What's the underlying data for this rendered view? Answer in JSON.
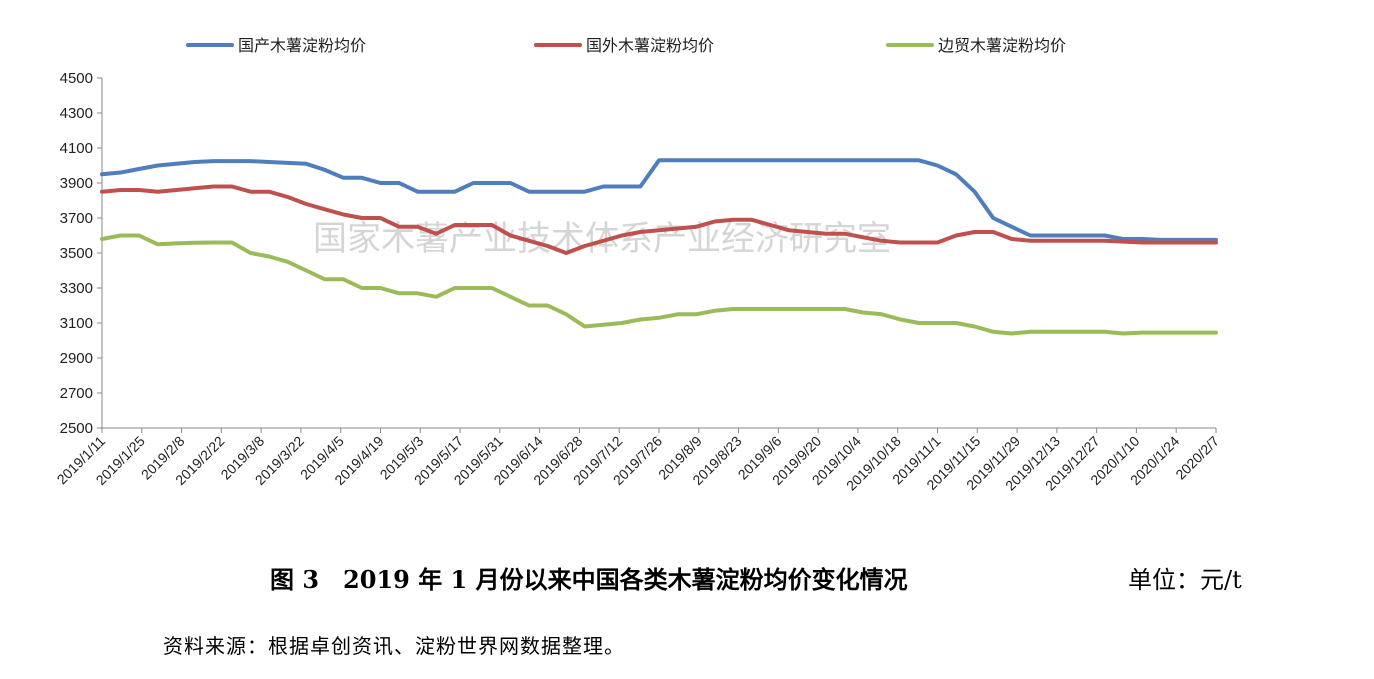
{
  "figure": {
    "caption": "图 3　2019 年 1 月份以来中国各类木薯淀粉均价变化情况",
    "unit": "单位：元/t",
    "source": "资料来源：根据卓创资讯、淀粉世界网数据整理。",
    "watermark": "国家木薯产业技术体系产业经济研究室"
  },
  "chart_data": {
    "type": "line",
    "title": "",
    "xlabel": "",
    "ylabel": "",
    "ylim": [
      2500,
      4500
    ],
    "yticks": [
      2500,
      2700,
      2900,
      3100,
      3300,
      3500,
      3700,
      3900,
      4100,
      4300,
      4500
    ],
    "x_tick_labels": [
      "2019/1/11",
      "2019/1/25",
      "2019/2/8",
      "2019/2/22",
      "2019/3/8",
      "2019/3/22",
      "2019/4/5",
      "2019/4/19",
      "2019/5/3",
      "2019/5/17",
      "2019/5/31",
      "2019/6/14",
      "2019/6/28",
      "2019/7/12",
      "2019/7/26",
      "2019/8/9",
      "2019/8/23",
      "2019/9/6",
      "2019/9/20",
      "2019/10/4",
      "2019/10/18",
      "2019/11/1",
      "2019/11/15",
      "2019/11/29",
      "2019/12/13",
      "2019/12/27",
      "2020/1/10",
      "2020/1/24",
      "2020/2/7"
    ],
    "legend_position": "top",
    "grid": false,
    "series": [
      {
        "name": "国产木薯淀粉均价",
        "color": "#4f7dbd",
        "values": [
          3950,
          3960,
          3980,
          4000,
          4010,
          4020,
          4025,
          4025,
          4025,
          4020,
          4015,
          4010,
          3975,
          3930,
          3930,
          3900,
          3900,
          3850,
          3850,
          3850,
          3900,
          3900,
          3900,
          3850,
          3850,
          3850,
          3850,
          3880,
          3880,
          3880,
          4030,
          4030,
          4030,
          4030,
          4030,
          4030,
          4030,
          4030,
          4030,
          4030,
          4030,
          4030,
          4030,
          4030,
          4030,
          4000,
          3950,
          3850,
          3700,
          3650,
          3600,
          3600,
          3600,
          3600,
          3600,
          3580,
          3580,
          3575,
          3575,
          3575,
          3575
        ]
      },
      {
        "name": "国外木薯淀粉均价",
        "color": "#c0504d",
        "values": [
          3850,
          3860,
          3860,
          3850,
          3860,
          3870,
          3880,
          3880,
          3850,
          3850,
          3820,
          3780,
          3750,
          3720,
          3700,
          3700,
          3650,
          3650,
          3610,
          3660,
          3660,
          3660,
          3600,
          3570,
          3540,
          3500,
          3540,
          3570,
          3600,
          3620,
          3630,
          3640,
          3650,
          3680,
          3690,
          3690,
          3660,
          3630,
          3620,
          3610,
          3610,
          3590,
          3570,
          3560,
          3560,
          3560,
          3600,
          3620,
          3620,
          3580,
          3570,
          3570,
          3570,
          3570,
          3570,
          3565,
          3560,
          3560,
          3560,
          3560,
          3560
        ]
      },
      {
        "name": "边贸木薯淀粉均价",
        "color": "#9bbb59",
        "values": [
          3580,
          3600,
          3600,
          3550,
          3555,
          3558,
          3560,
          3560,
          3500,
          3480,
          3450,
          3400,
          3350,
          3350,
          3300,
          3300,
          3270,
          3270,
          3250,
          3300,
          3300,
          3300,
          3250,
          3200,
          3200,
          3150,
          3080,
          3090,
          3100,
          3120,
          3130,
          3150,
          3150,
          3170,
          3180,
          3180,
          3180,
          3180,
          3180,
          3180,
          3180,
          3160,
          3150,
          3120,
          3100,
          3100,
          3100,
          3080,
          3050,
          3040,
          3050,
          3050,
          3050,
          3050,
          3050,
          3040,
          3045,
          3045,
          3045,
          3045,
          3045
        ]
      }
    ]
  }
}
